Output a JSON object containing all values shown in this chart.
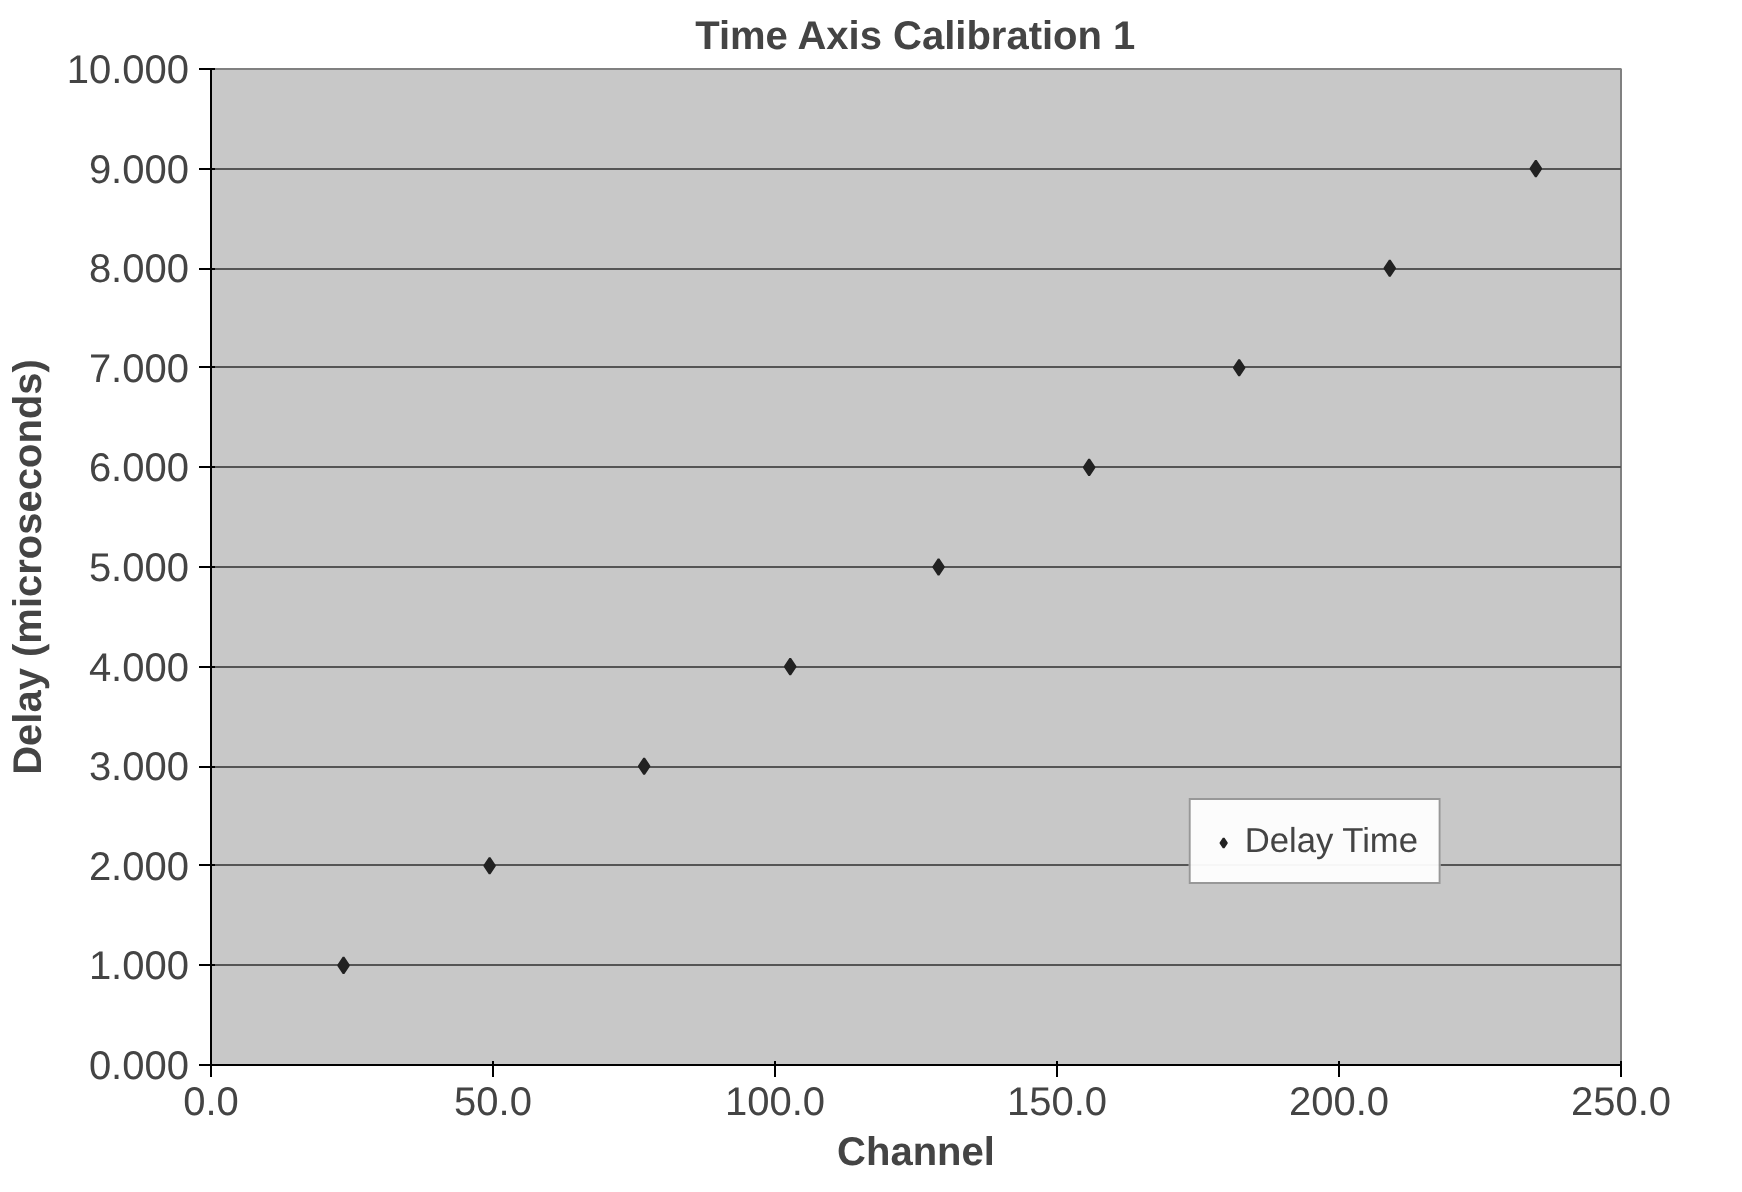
{
  "chart_data": {
    "type": "scatter",
    "title": "Time Axis Calibration 1",
    "xlabel": "Channel",
    "ylabel": "Delay (microseconds)",
    "x": [
      23.5,
      49.4,
      76.8,
      102.7,
      129,
      155.7,
      182.3,
      209,
      234.9
    ],
    "series": [
      {
        "name": "Delay Time",
        "color": "#222222",
        "values": [
          1,
          2,
          3,
          4,
          5,
          6,
          7,
          8,
          9
        ]
      }
    ],
    "xlim": [
      0,
      250
    ],
    "ylim": [
      0,
      10
    ],
    "xticks": [
      {
        "value": 0,
        "label": "0.0"
      },
      {
        "value": 50,
        "label": "50.0"
      },
      {
        "value": 100,
        "label": "100.0"
      },
      {
        "value": 150,
        "label": "150.0"
      },
      {
        "value": 200,
        "label": "200.0"
      },
      {
        "value": 250,
        "label": "250.0"
      }
    ],
    "yticks": [
      {
        "value": 0,
        "label": "0.000"
      },
      {
        "value": 1,
        "label": "1.000"
      },
      {
        "value": 2,
        "label": "2.000"
      },
      {
        "value": 3,
        "label": "3.000"
      },
      {
        "value": 4,
        "label": "4.000"
      },
      {
        "value": 5,
        "label": "5.000"
      },
      {
        "value": 6,
        "label": "6.000"
      },
      {
        "value": 7,
        "label": "7.000"
      },
      {
        "value": 8,
        "label": "8.000"
      },
      {
        "value": 9,
        "label": "9.000"
      },
      {
        "value": 10,
        "label": "10.000"
      }
    ],
    "grid": "y",
    "legend": "bottom right",
    "marker": "diamond"
  }
}
